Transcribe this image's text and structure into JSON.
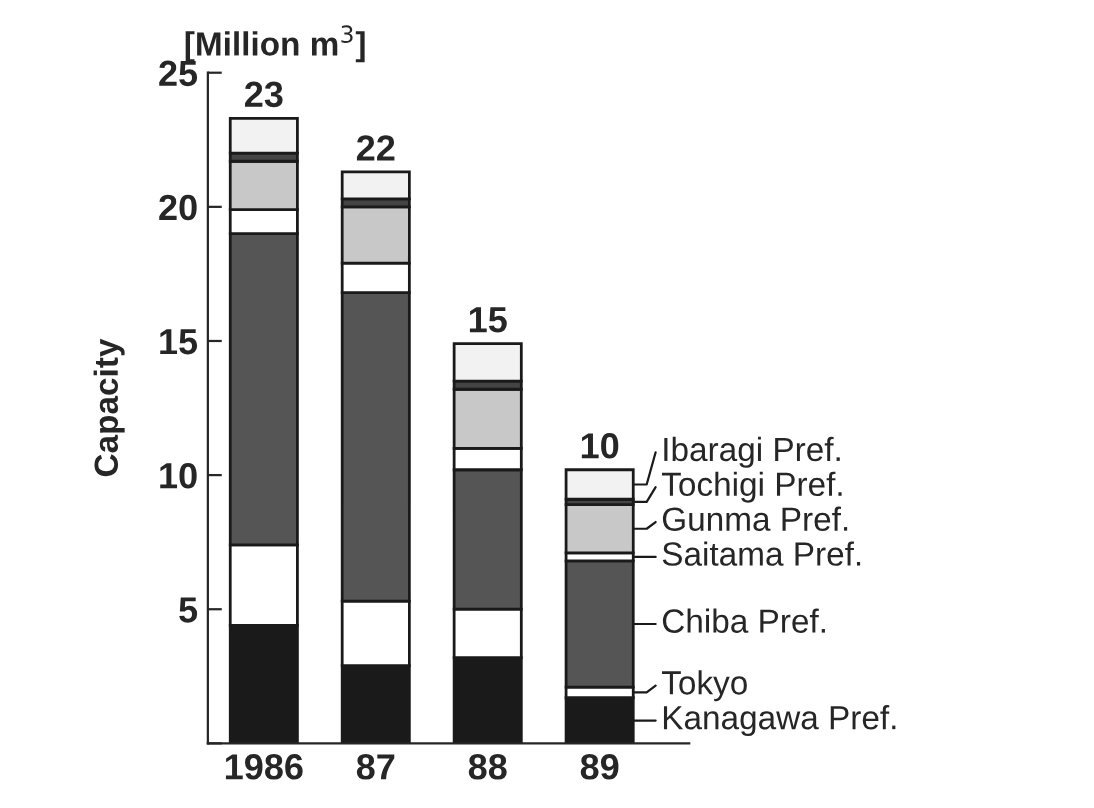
{
  "chart_data": {
    "type": "bar",
    "stacked": true,
    "ylabel": "Capacity",
    "annotations": [
      "[Million m$^{3}$]"
    ],
    "categories": [
      "1986",
      "87",
      "88",
      "89"
    ],
    "series": [
      {
        "name": "Kanagawa Pref.",
        "color": "#1a1a1a",
        "values": [
          4.4,
          2.9,
          3.2,
          1.7
        ]
      },
      {
        "name": "Tokyo",
        "color": "#ffffff",
        "values": [
          3.0,
          2.4,
          1.8,
          0.4
        ]
      },
      {
        "name": "Chiba Pref.",
        "color": "#555555",
        "values": [
          11.6,
          11.5,
          5.2,
          4.7
        ]
      },
      {
        "name": "Saitama Pref.",
        "color": "#ffffff",
        "values": [
          0.9,
          1.1,
          0.8,
          0.3
        ]
      },
      {
        "name": "Gunma Pref.",
        "color": "#c8c8c8",
        "values": [
          1.8,
          2.1,
          2.2,
          1.8
        ]
      },
      {
        "name": "Tochigi Pref.",
        "color": "#444444",
        "values": [
          0.3,
          0.3,
          0.3,
          0.2
        ]
      },
      {
        "name": "Ibaragi Pref.",
        "color": "#f2f2f2",
        "values": [
          1.3,
          1.0,
          1.4,
          1.1
        ]
      }
    ],
    "totals": [
      "23",
      "22",
      "15",
      "10"
    ],
    "ylim": [
      0,
      25
    ],
    "yticks": [
      {
        "value": 0,
        "label": null
      },
      5,
      10,
      15,
      20,
      25
    ],
    "grid": false,
    "legend": "right"
  }
}
